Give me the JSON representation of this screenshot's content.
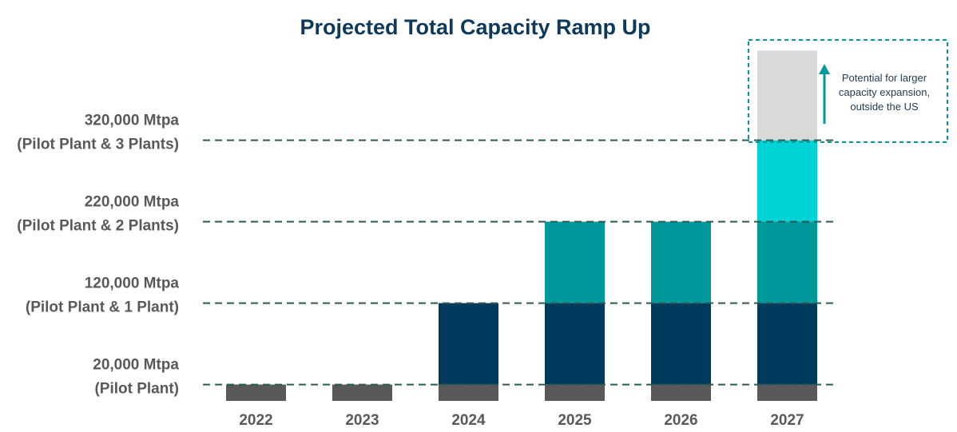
{
  "chart_data": {
    "type": "bar",
    "stacked": true,
    "title": "Projected Total Capacity Ramp Up",
    "unit": "Mtpa",
    "categories": [
      "2022",
      "2023",
      "2024",
      "2025",
      "2026",
      "2027"
    ],
    "series": [
      {
        "color": "#595959",
        "values": [
          20000,
          20000,
          20000,
          20000,
          20000,
          20000
        ]
      },
      {
        "color": "#003a5d",
        "values": [
          0,
          0,
          100000,
          100000,
          100000,
          100000
        ]
      },
      {
        "color": "#00989a",
        "values": [
          0,
          0,
          0,
          100000,
          100000,
          100000
        ]
      },
      {
        "color": "#00d3d6",
        "values": [
          0,
          0,
          0,
          0,
          0,
          100000
        ]
      },
      {
        "color": "#d9d9d9",
        "values": [
          0,
          0,
          0,
          0,
          0,
          110000
        ]
      }
    ],
    "reference_lines": [
      {
        "value": 20000,
        "label_line1": "20,000 Mtpa",
        "label_line2": "(Pilot Plant)"
      },
      {
        "value": 120000,
        "label_line1": "120,000 Mtpa",
        "label_line2": "(Pilot Plant & 1 Plant)"
      },
      {
        "value": 220000,
        "label_line1": "220,000 Mtpa",
        "label_line2": "(Pilot Plant & 2 Plants)"
      },
      {
        "value": 320000,
        "label_line1": "320,000 Mtpa",
        "label_line2": "(Pilot Plant & 3 Plants)"
      }
    ],
    "annotation": {
      "lines": [
        "Potential for larger",
        "capacity expansion,",
        "outside the US"
      ],
      "color": "#00989a"
    },
    "ylim": [
      0,
      430000
    ],
    "grid": false,
    "legend": "none"
  }
}
